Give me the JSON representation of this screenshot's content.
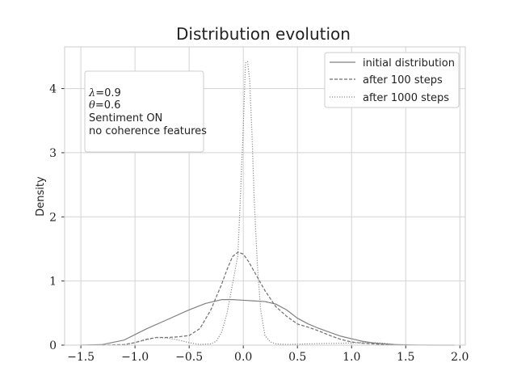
{
  "chart_data": {
    "type": "line",
    "title": "Distribution evolution",
    "xlabel": "",
    "ylabel": "Density",
    "xlim": [
      -1.65,
      2.05
    ],
    "ylim": [
      0,
      4.65
    ],
    "xticks": [
      -1.5,
      -1.0,
      -0.5,
      0.0,
      0.5,
      1.0,
      1.5,
      2.0
    ],
    "xtick_labels": [
      "−1.5",
      "−1.0",
      "−0.5",
      "0.0",
      "0.5",
      "1.0",
      "1.5",
      "2.0"
    ],
    "yticks": [
      0,
      1,
      2,
      3,
      4
    ],
    "ytick_labels": [
      "0",
      "1",
      "2",
      "3",
      "4"
    ],
    "grid": true,
    "legend_position": "upper-right",
    "annotation": {
      "position": "upper-left",
      "lines": [
        {
          "symbol": "λ",
          "text": "=0.9"
        },
        {
          "symbol": "θ",
          "text": "=0.6"
        },
        {
          "symbol": "",
          "text": "Sentiment ON"
        },
        {
          "symbol": "",
          "text": "no coherence features"
        }
      ]
    },
    "series": [
      {
        "name": "initial distribution",
        "style": "solid",
        "color": "#808080",
        "x": [
          -1.5,
          -1.3,
          -1.1,
          -0.9,
          -0.7,
          -0.5,
          -0.35,
          -0.2,
          -0.1,
          0.0,
          0.1,
          0.2,
          0.3,
          0.4,
          0.5,
          0.6,
          0.7,
          0.8,
          0.9,
          1.0,
          1.1,
          1.2,
          1.3,
          1.4,
          1.5,
          1.6,
          1.8,
          1.95
        ],
        "y": [
          0.0,
          0.01,
          0.08,
          0.25,
          0.4,
          0.55,
          0.65,
          0.71,
          0.71,
          0.7,
          0.69,
          0.68,
          0.64,
          0.55,
          0.42,
          0.33,
          0.26,
          0.2,
          0.14,
          0.1,
          0.06,
          0.035,
          0.02,
          0.01,
          0.005,
          0.002,
          0.0,
          0.0
        ]
      },
      {
        "name": "after 100 steps",
        "style": "dashed",
        "color": "#6e6e6e",
        "x": [
          -1.3,
          -1.1,
          -1.0,
          -0.9,
          -0.8,
          -0.7,
          -0.6,
          -0.5,
          -0.4,
          -0.3,
          -0.2,
          -0.15,
          -0.1,
          -0.05,
          0.0,
          0.05,
          0.1,
          0.15,
          0.2,
          0.3,
          0.4,
          0.5,
          0.6,
          0.7,
          0.8,
          0.9,
          1.0,
          1.1,
          1.2,
          1.3,
          1.4,
          1.5
        ],
        "y": [
          0.0,
          0.01,
          0.04,
          0.09,
          0.12,
          0.12,
          0.13,
          0.15,
          0.26,
          0.55,
          0.95,
          1.18,
          1.38,
          1.45,
          1.42,
          1.3,
          1.15,
          1.0,
          0.85,
          0.6,
          0.45,
          0.33,
          0.28,
          0.22,
          0.15,
          0.09,
          0.05,
          0.03,
          0.02,
          0.01,
          0.003,
          0.0
        ]
      },
      {
        "name": "after 1000 steps",
        "style": "dotted",
        "color": "#8a8a8a",
        "x": [
          -1.1,
          -1.0,
          -0.9,
          -0.8,
          -0.7,
          -0.6,
          -0.5,
          -0.4,
          -0.3,
          -0.25,
          -0.2,
          -0.15,
          -0.1,
          -0.05,
          -0.03,
          0.0,
          0.02,
          0.04,
          0.06,
          0.08,
          0.1,
          0.13,
          0.16,
          0.2,
          0.25,
          0.3,
          0.4,
          0.5,
          0.7,
          0.9,
          1.0,
          1.1,
          1.2,
          1.3,
          1.4,
          1.5
        ],
        "y": [
          0.0,
          0.04,
          0.08,
          0.12,
          0.11,
          0.08,
          0.04,
          0.01,
          0.02,
          0.06,
          0.2,
          0.5,
          0.95,
          1.4,
          2.2,
          3.4,
          4.4,
          4.42,
          4.1,
          3.3,
          2.3,
          1.25,
          0.55,
          0.15,
          0.05,
          0.02,
          0.01,
          0.015,
          0.025,
          0.03,
          0.035,
          0.04,
          0.04,
          0.03,
          0.01,
          0.0
        ]
      }
    ]
  }
}
